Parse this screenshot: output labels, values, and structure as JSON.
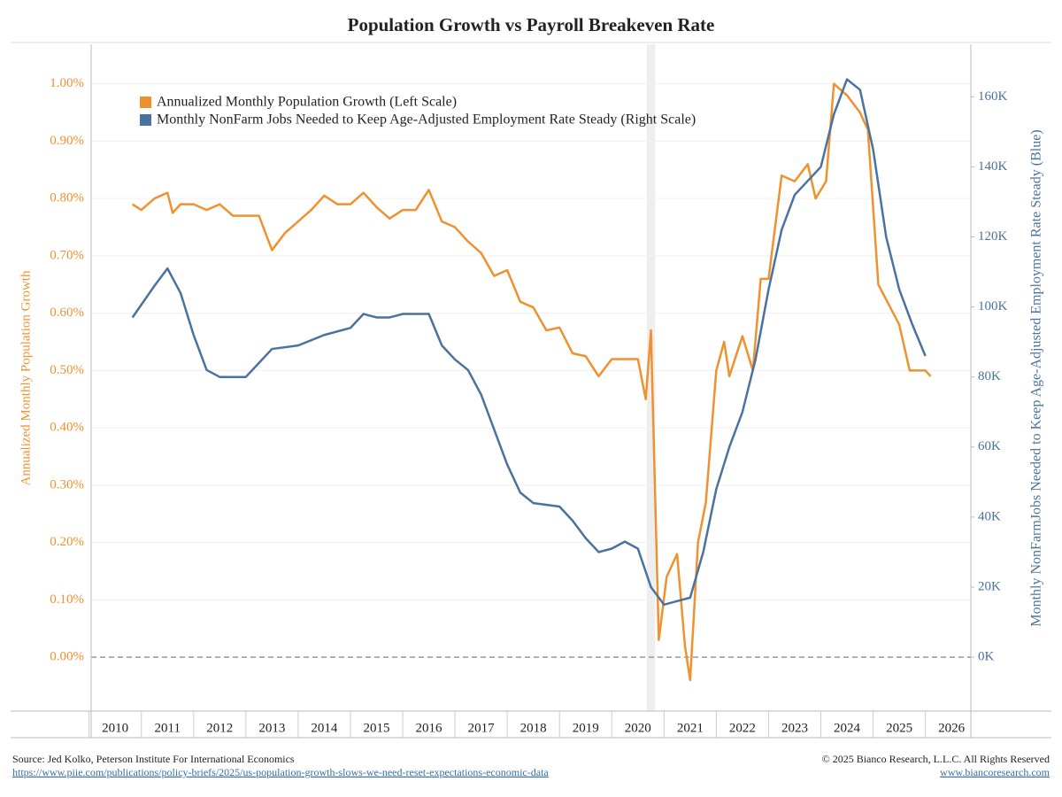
{
  "chart_data": {
    "type": "line",
    "title": "Population Growth vs Payroll Breakeven Rate",
    "ylabel": "Annualized Monthly Population Growth",
    "y2label": "Monthly  NonFarmJobs Needed to Keep Age-Adjusted Employment Rate Steady (Blue)",
    "xlim": [
      2009.54,
      2026.37
    ],
    "xticks": [
      2010,
      2011,
      2012,
      2013,
      2014,
      2015,
      2016,
      2017,
      2018,
      2019,
      2020,
      2021,
      2022,
      2023,
      2024,
      2025,
      2026
    ],
    "ylim": [
      -0.094,
      1.069
    ],
    "yticks": [
      {
        "value": 0,
        "label": "0.00%"
      },
      {
        "value": 0.1,
        "label": "0.10%"
      },
      {
        "value": 0.2,
        "label": "0.20%"
      },
      {
        "value": 0.3,
        "label": "0.30%"
      },
      {
        "value": 0.4,
        "label": "0.40%"
      },
      {
        "value": 0.5,
        "label": "0.50%"
      },
      {
        "value": 0.6,
        "label": "0.60%"
      },
      {
        "value": 0.7,
        "label": "0.70%"
      },
      {
        "value": 0.8,
        "label": "0.80%"
      },
      {
        "value": 0.9,
        "label": "0.90%"
      },
      {
        "value": 1,
        "label": "1.00%"
      }
    ],
    "y2lim": [
      -15400,
      175000
    ],
    "y2ticks": [
      {
        "value": 0,
        "label": "0K"
      },
      {
        "value": 20000,
        "label": "20K"
      },
      {
        "value": 40000,
        "label": "40K"
      },
      {
        "value": 60000,
        "label": "60K"
      },
      {
        "value": 80000,
        "label": "80K"
      },
      {
        "value": 100000,
        "label": "100K"
      },
      {
        "value": 120000,
        "label": "120K"
      },
      {
        "value": 140000,
        "label": "140K"
      },
      {
        "value": 160000,
        "label": "160K"
      }
    ],
    "grid": true,
    "shade": [
      2020.17,
      2020.33
    ],
    "legend": "upper left",
    "series": [
      {
        "name": "Annualized Monthly Population Growth (Left Scale)",
        "color": "#f0912f",
        "x": [
          2010.33,
          2010.5,
          2010.75,
          2011.0,
          2011.1,
          2011.25,
          2011.5,
          2011.75,
          2012.0,
          2012.25,
          2012.5,
          2012.75,
          2013.0,
          2013.25,
          2013.5,
          2013.75,
          2014.0,
          2014.25,
          2014.5,
          2014.75,
          2015.0,
          2015.25,
          2015.5,
          2015.75,
          2016.0,
          2016.25,
          2016.5,
          2016.75,
          2017.0,
          2017.25,
          2017.5,
          2017.75,
          2018.0,
          2018.25,
          2018.5,
          2018.75,
          2019.0,
          2019.25,
          2019.5,
          2019.75,
          2020.0,
          2020.15,
          2020.25,
          2020.4,
          2020.55,
          2020.75,
          2020.9,
          2021.0,
          2021.15,
          2021.3,
          2021.5,
          2021.65,
          2021.75,
          2022.0,
          2022.2,
          2022.35,
          2022.5,
          2022.75,
          2023.0,
          2023.25,
          2023.4,
          2023.6,
          2023.75,
          2024.0,
          2024.25,
          2024.4,
          2024.6,
          2025.0,
          2025.2,
          2025.5,
          2025.6
        ],
        "values": [
          0.79,
          0.78,
          0.8,
          0.81,
          0.775,
          0.79,
          0.79,
          0.78,
          0.79,
          0.77,
          0.77,
          0.77,
          0.71,
          0.74,
          0.76,
          0.78,
          0.805,
          0.79,
          0.79,
          0.81,
          0.785,
          0.765,
          0.78,
          0.78,
          0.815,
          0.76,
          0.75,
          0.725,
          0.705,
          0.665,
          0.675,
          0.62,
          0.61,
          0.57,
          0.575,
          0.53,
          0.525,
          0.49,
          0.52,
          0.52,
          0.52,
          0.45,
          0.57,
          0.03,
          0.14,
          0.18,
          0.02,
          -0.04,
          0.2,
          0.27,
          0.5,
          0.55,
          0.49,
          0.56,
          0.5,
          0.66,
          0.66,
          0.84,
          0.83,
          0.86,
          0.8,
          0.83,
          1.0,
          0.98,
          0.95,
          0.92,
          0.65,
          0.58,
          0.5,
          0.5,
          0.49
        ]
      },
      {
        "name": "Monthly NonFarm Jobs Needed to Keep Age-Adjusted Employment Rate Steady (Right Scale)",
        "color": "#4a72a0",
        "axis": "y2",
        "x": [
          2010.33,
          2010.75,
          2011.0,
          2011.25,
          2011.5,
          2011.75,
          2012.0,
          2012.5,
          2012.75,
          2013.0,
          2013.5,
          2014.0,
          2014.5,
          2014.75,
          2015.0,
          2015.25,
          2015.5,
          2016.0,
          2016.25,
          2016.5,
          2016.75,
          2017.0,
          2017.25,
          2017.5,
          2017.75,
          2018.0,
          2018.5,
          2018.75,
          2019.0,
          2019.25,
          2019.5,
          2019.75,
          2020.0,
          2020.25,
          2020.5,
          2020.75,
          2021.0,
          2021.25,
          2021.5,
          2021.75,
          2022.0,
          2022.25,
          2022.5,
          2022.75,
          2023.0,
          2023.5,
          2023.75,
          2024.0,
          2024.25,
          2024.5,
          2024.75,
          2025.0,
          2025.25,
          2025.5
        ],
        "values": [
          97000,
          106000,
          111000,
          104000,
          92000,
          82000,
          80000,
          80000,
          84000,
          88000,
          89000,
          92000,
          94000,
          98000,
          97000,
          97000,
          98000,
          98000,
          89000,
          85000,
          82000,
          75000,
          65000,
          55000,
          47000,
          44000,
          43000,
          39000,
          34000,
          30000,
          31000,
          33000,
          31000,
          20000,
          15000,
          16000,
          17000,
          30000,
          48000,
          60000,
          70000,
          85000,
          105000,
          122000,
          132000,
          140000,
          155000,
          165000,
          162000,
          145000,
          120000,
          105000,
          95000,
          86000
        ]
      }
    ]
  },
  "footer": {
    "source": "Source: Jed Kolko, Peterson Institute For International Economics",
    "link": "https://www.piie.com/publications/policy-briefs/2025/us-population-growth-slows-we-need-reset-expectations-economic-data",
    "copyright": "© 2025 Bianco Research, L.L.C. All Rights Reserved",
    "website": "www.biancoresearch.com"
  }
}
